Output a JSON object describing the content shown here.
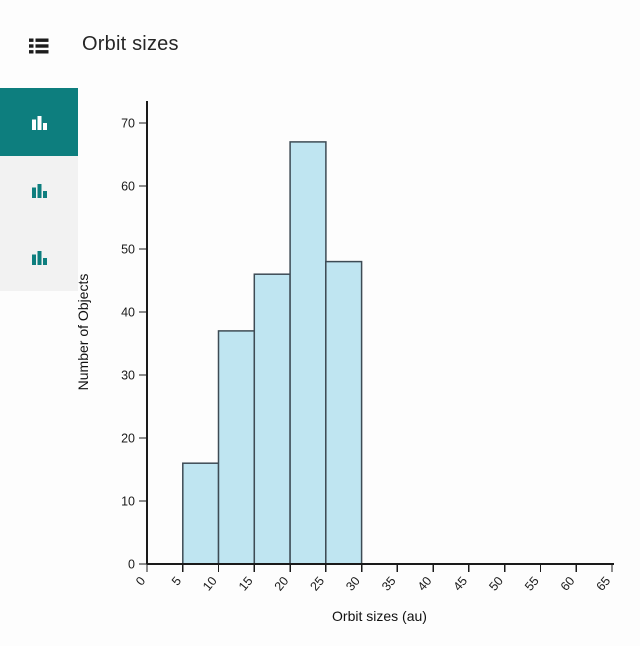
{
  "header": {
    "title": "Orbit sizes",
    "menu_icon": "list-icon"
  },
  "sidebar": {
    "items": [
      {
        "id": "histogram-1",
        "icon": "histogram-icon",
        "selected": true
      },
      {
        "id": "histogram-2",
        "icon": "histogram-icon",
        "selected": false
      },
      {
        "id": "histogram-3",
        "icon": "histogram-icon",
        "selected": false
      }
    ]
  },
  "colors": {
    "accent_teal": "#0d7e7e",
    "sidebar_bg": "#f2f2f2",
    "page_bg": "#fdfdfd",
    "bar_fill": "#bfe5f1",
    "bar_stroke": "#3d4b54",
    "axis": "#1a1a1a",
    "title_text": "#262626"
  },
  "chart_data": {
    "type": "bar",
    "title": "Orbit sizes",
    "xlabel": "Orbit sizes (au)",
    "ylabel": "Number of Objects",
    "bin_width": 5,
    "bins": [
      {
        "start": 5,
        "end": 10,
        "count": 16
      },
      {
        "start": 10,
        "end": 15,
        "count": 37
      },
      {
        "start": 15,
        "end": 20,
        "count": 46
      },
      {
        "start": 20,
        "end": 25,
        "count": 67
      },
      {
        "start": 25,
        "end": 30,
        "count": 48
      }
    ],
    "x_ticks": [
      0,
      5,
      10,
      15,
      20,
      25,
      30,
      35,
      40,
      45,
      50,
      55,
      60,
      65
    ],
    "y_ticks": [
      0,
      10,
      20,
      30,
      40,
      50,
      60,
      70
    ],
    "xlim": [
      0,
      65
    ],
    "ylim": [
      0,
      73
    ],
    "grid": false,
    "legend": null,
    "x_tick_rotation_deg": -50
  }
}
